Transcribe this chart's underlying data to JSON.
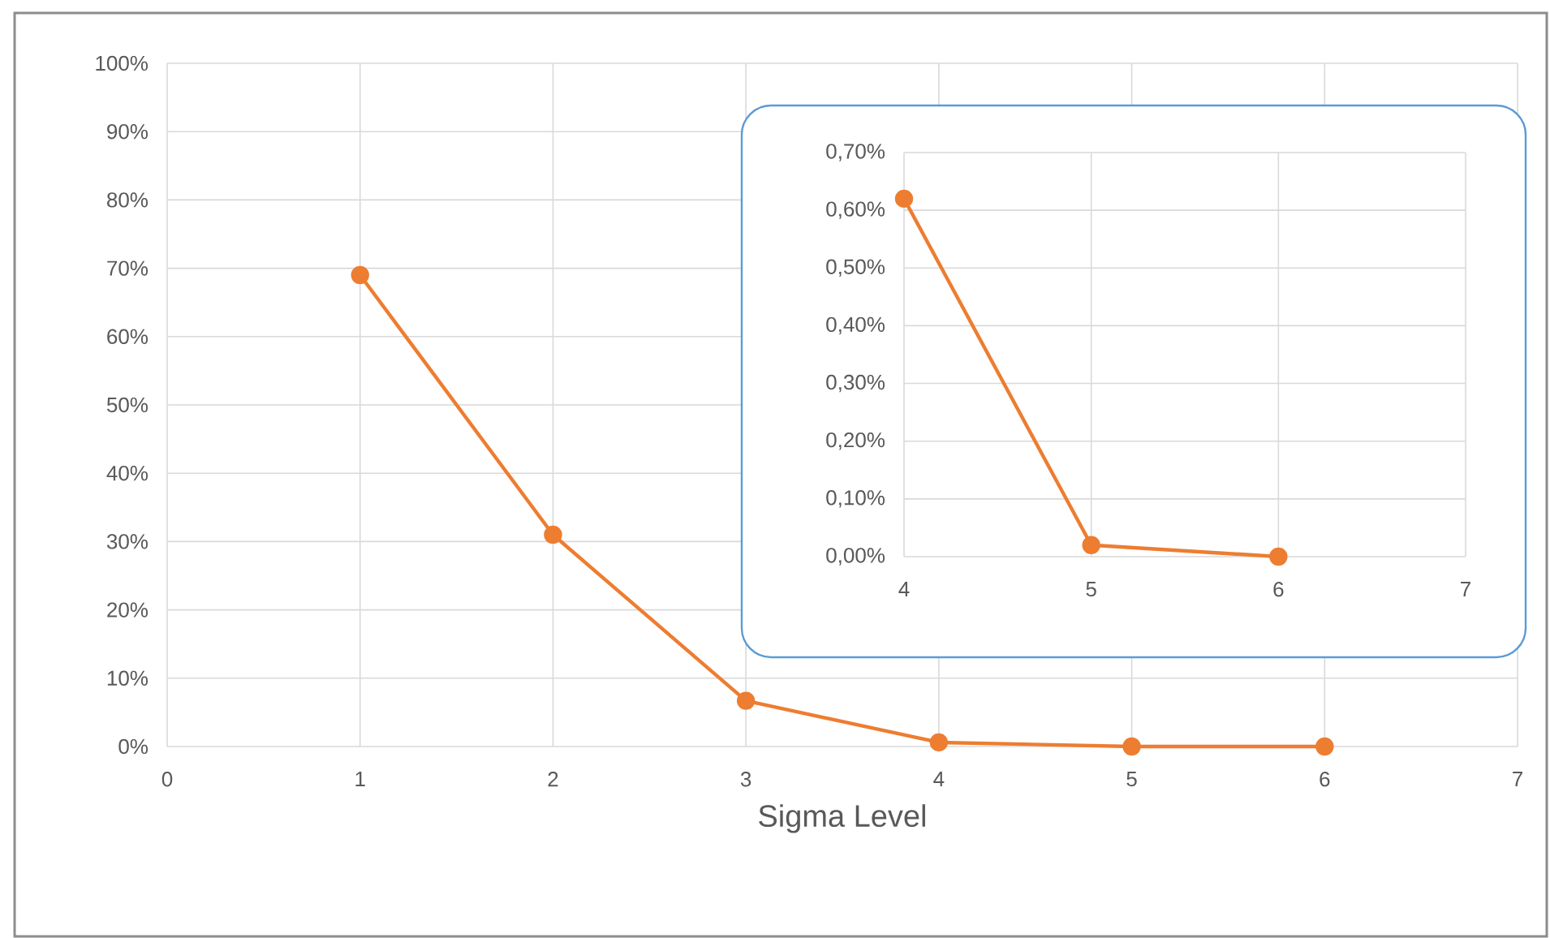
{
  "chart_data": [
    {
      "type": "line",
      "xlabel": "Sigma Level",
      "x": [
        1,
        2,
        3,
        4,
        5,
        6
      ],
      "series": [
        {
          "color": "#ed7d31",
          "values": [
            69,
            31,
            6.7,
            0.6,
            0,
            0
          ]
        }
      ],
      "xlim": [
        0,
        7
      ],
      "xticks": [
        0,
        1,
        2,
        3,
        4,
        5,
        6,
        7
      ],
      "ylim": [
        0,
        100
      ],
      "yticks": [
        {
          "value": 0,
          "label": "0%"
        },
        {
          "value": 10,
          "label": "10%"
        },
        {
          "value": 20,
          "label": "20%"
        },
        {
          "value": 30,
          "label": "30%"
        },
        {
          "value": 40,
          "label": "40%"
        },
        {
          "value": 50,
          "label": "50%"
        },
        {
          "value": 60,
          "label": "60%"
        },
        {
          "value": 70,
          "label": "70%"
        },
        {
          "value": 80,
          "label": "80%"
        },
        {
          "value": 90,
          "label": "90%"
        },
        {
          "value": 100,
          "label": "100%"
        }
      ],
      "grid": true,
      "marker": "circle"
    },
    {
      "type": "line",
      "x": [
        4,
        5,
        6
      ],
      "series": [
        {
          "color": "#ed7d31",
          "values": [
            0.62,
            0.02,
            0
          ]
        }
      ],
      "xlim": [
        4,
        7
      ],
      "xticks": [
        4,
        5,
        6,
        7
      ],
      "ylim": [
        0,
        0.7
      ],
      "yticks": [
        {
          "value": 0,
          "label": "0,00%"
        },
        {
          "value": 0.1,
          "label": "0,10%"
        },
        {
          "value": 0.2,
          "label": "0,20%"
        },
        {
          "value": 0.3,
          "label": "0,30%"
        },
        {
          "value": 0.4,
          "label": "0,40%"
        },
        {
          "value": 0.5,
          "label": "0,50%"
        },
        {
          "value": 0.6,
          "label": "0,60%"
        },
        {
          "value": 0.7,
          "label": "0,70%"
        }
      ],
      "grid": true,
      "marker": "circle"
    }
  ]
}
